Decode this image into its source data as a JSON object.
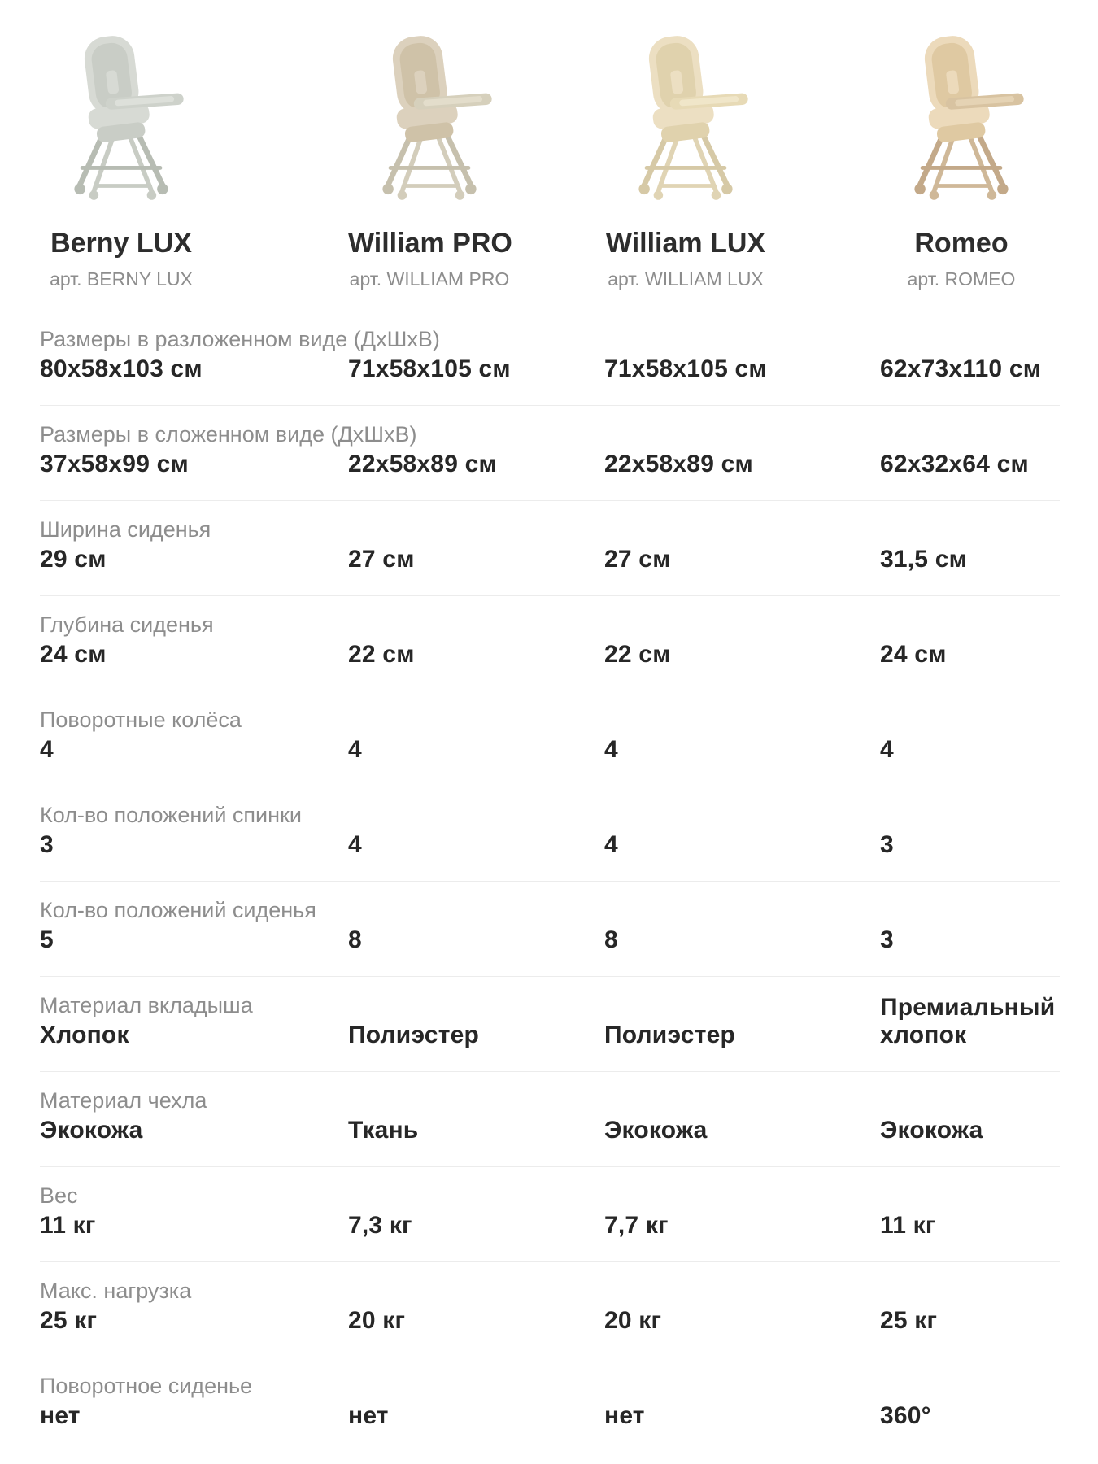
{
  "products": [
    {
      "name": "Berny LUX",
      "article": "арт. BERNY LUX",
      "image": "berny-lux-highchair-photo",
      "colors": {
        "frame": "#b7bcb3",
        "frame2": "#c8ccc4",
        "pad": "#d7dad4",
        "pad2": "#c9cdc6",
        "tray": "#ced2cb",
        "tray2": "#dde0da"
      }
    },
    {
      "name": "William PRO",
      "article": "арт. WILLIAM PRO",
      "image": "william-pro-highchair-photo",
      "colors": {
        "frame": "#c6c0ad",
        "frame2": "#d3cdbb",
        "pad": "#dcd1bd",
        "pad2": "#cfc2a8",
        "tray": "#d6d0bc",
        "tray2": "#e3ddcb"
      }
    },
    {
      "name": "William LUX",
      "article": "арт. WILLIAM LUX",
      "image": "william-lux-highchair-photo",
      "colors": {
        "frame": "#d6c9a6",
        "frame2": "#e0d4b4",
        "pad": "#ecdfc2",
        "pad2": "#e0d2ad",
        "tray": "#e7dab6",
        "tray2": "#f0e6c9"
      }
    },
    {
      "name": "Romeo",
      "article": "арт. ROMEO",
      "image": "romeo-highchair-photo",
      "colors": {
        "frame": "#c3a989",
        "frame2": "#cfb898",
        "pad": "#ecdabb",
        "pad2": "#dfc9a2",
        "tray": "#d8c3a1",
        "tray2": "#e5d3b4"
      }
    }
  ],
  "specs": [
    {
      "label": "Размеры в разложенном виде (ДхШхВ)",
      "values": [
        "80х58х103 см",
        "71х58х105 см",
        "71х58х105 см",
        "62х73х110 см"
      ]
    },
    {
      "label": "Размеры в сложенном виде (ДхШхВ)",
      "values": [
        "37х58х99 см",
        "22х58х89 см",
        "22х58х89 см",
        "62х32х64 см"
      ]
    },
    {
      "label": "Ширина сиденья",
      "values": [
        "29 см",
        "27 см",
        "27 см",
        "31,5 см"
      ]
    },
    {
      "label": "Глубина сиденья",
      "values": [
        "24 см",
        "22 см",
        "22 см",
        "24 см"
      ]
    },
    {
      "label": "Поворотные колёса",
      "values": [
        "4",
        "4",
        "4",
        "4"
      ]
    },
    {
      "label": "Кол-во положений спинки",
      "values": [
        "3",
        "4",
        "4",
        "3"
      ]
    },
    {
      "label": "Кол-во положений сиденья",
      "values": [
        "5",
        "8",
        "8",
        "3"
      ]
    },
    {
      "label": "Материал вкладыша",
      "values": [
        "Хлопок",
        "Полиэстер",
        "Полиэстер",
        "Премиальный хлопок"
      ]
    },
    {
      "label": "Материал чехла",
      "values": [
        "Экокожа",
        "Ткань",
        "Экокожа",
        "Экокожа"
      ]
    },
    {
      "label": "Вес",
      "values": [
        "11 кг",
        "7,3 кг",
        "7,7 кг",
        "11 кг"
      ]
    },
    {
      "label": "Макс. нагрузка",
      "values": [
        "25 кг",
        "20 кг",
        "20 кг",
        "25 кг"
      ]
    },
    {
      "label": "Поворотное сиденье",
      "values": [
        "нет",
        "нет",
        "нет",
        "360°"
      ]
    }
  ],
  "theme_colors": {
    "text_primary": "#272727",
    "text_secondary": "#8d8d8d",
    "divider": "#ececec",
    "background": "#ffffff"
  }
}
